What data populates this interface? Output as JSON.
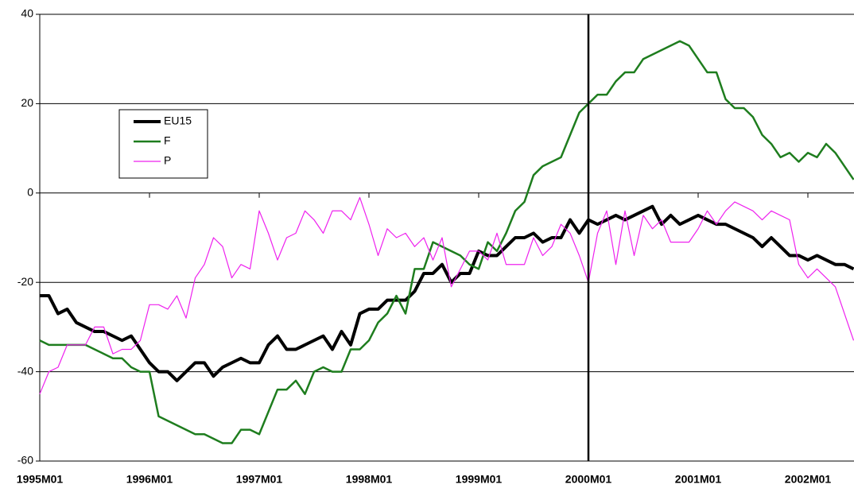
{
  "chart_data": {
    "type": "line",
    "categories": [
      "1995M01",
      null,
      null,
      null,
      null,
      null,
      null,
      null,
      null,
      null,
      null,
      null,
      "1996M01",
      null,
      null,
      null,
      null,
      null,
      null,
      null,
      null,
      null,
      null,
      null,
      "1997M01",
      null,
      null,
      null,
      null,
      null,
      null,
      null,
      null,
      null,
      null,
      null,
      "1998M01",
      null,
      null,
      null,
      null,
      null,
      null,
      null,
      null,
      null,
      null,
      null,
      "1999M01",
      null,
      null,
      null,
      null,
      null,
      null,
      null,
      null,
      null,
      null,
      null,
      "2000M01",
      null,
      null,
      null,
      null,
      null,
      null,
      null,
      null,
      null,
      null,
      null,
      "2001M01",
      null,
      null,
      null,
      null,
      null,
      null,
      null,
      null,
      null,
      null,
      null,
      "2002M01",
      null,
      null,
      null,
      null,
      null
    ],
    "series": [
      {
        "name": "EU15",
        "color": "#000000",
        "line_width": 4,
        "values": [
          -23,
          -23,
          -27,
          -26,
          -29,
          -30,
          -31,
          -31,
          -32,
          -33,
          -32,
          -35,
          -38,
          -40,
          -40,
          -42,
          -40,
          -38,
          -38,
          -41,
          -39,
          -38,
          -37,
          -38,
          -38,
          -34,
          -32,
          -35,
          -35,
          -34,
          -33,
          -32,
          -35,
          -31,
          -34,
          -27,
          -26,
          -26,
          -24,
          -24,
          -24,
          -22,
          -18,
          -18,
          -16,
          -20,
          -18,
          -18,
          -13,
          -14,
          -14,
          -12,
          -10,
          -10,
          -9,
          -11,
          -10,
          -10,
          -6,
          -9,
          -6,
          -7,
          -6,
          -5,
          -6,
          -5,
          -4,
          -3,
          -7,
          -5,
          -7,
          -6,
          -5,
          -6,
          -7,
          -7,
          -8,
          -9,
          -10,
          -12,
          -10,
          -12,
          -14,
          -14,
          -15,
          -14,
          -15,
          -16,
          -16,
          -17
        ]
      },
      {
        "name": "F",
        "color": "#1e7d1e",
        "line_width": 2.5,
        "values": [
          -33,
          -34,
          -34,
          -34,
          -34,
          -34,
          -35,
          -36,
          -37,
          -37,
          -39,
          -40,
          -40,
          -50,
          -51,
          -52,
          -53,
          -54,
          -54,
          -55,
          -56,
          -56,
          -53,
          -53,
          -54,
          -49,
          -44,
          -44,
          -42,
          -45,
          -40,
          -39,
          -40,
          -40,
          -35,
          -35,
          -33,
          -29,
          -27,
          -23,
          -27,
          -17,
          -17,
          -11,
          -12,
          -13,
          -14,
          -16,
          -17,
          -11,
          -13,
          -9,
          -4,
          -2,
          4,
          6,
          7,
          8,
          13,
          18,
          20,
          22,
          22,
          25,
          27,
          27,
          30,
          31,
          32,
          33,
          34,
          33,
          30,
          27,
          27,
          21,
          19,
          19,
          17,
          13,
          11,
          8,
          9,
          7,
          9,
          8,
          11,
          9,
          6,
          3
        ]
      },
      {
        "name": "P",
        "color": "#ee22ee",
        "line_width": 1.2,
        "values": [
          -45,
          -40,
          -39,
          -34,
          -34,
          -34,
          -30,
          -30,
          -36,
          -35,
          -35,
          -33,
          -25,
          -25,
          -26,
          -23,
          -28,
          -19,
          -16,
          -10,
          -12,
          -19,
          -16,
          -17,
          -4,
          -9,
          -15,
          -10,
          -9,
          -4,
          -6,
          -9,
          -4,
          -4,
          -6,
          -1,
          -7,
          -14,
          -8,
          -10,
          -9,
          -12,
          -10,
          -15,
          -10,
          -21,
          -17,
          -13,
          -13,
          -15,
          -9,
          -16,
          -16,
          -16,
          -10,
          -14,
          -12,
          -7,
          -9,
          -14,
          -20,
          -9,
          -4,
          -16,
          -4,
          -14,
          -5,
          -8,
          -6,
          -11,
          -11,
          -11,
          -8,
          -4,
          -7,
          -4,
          -2,
          -3,
          -4,
          -6,
          -4,
          -5,
          -6,
          -16,
          -19,
          -17,
          -19,
          -21,
          -27,
          -33
        ]
      }
    ],
    "ylim": [
      -60,
      40
    ],
    "yticks": [
      -60,
      -40,
      -20,
      0,
      20,
      40
    ],
    "grid": true,
    "vertical_line": "2000M01",
    "legend": "upper-left"
  }
}
